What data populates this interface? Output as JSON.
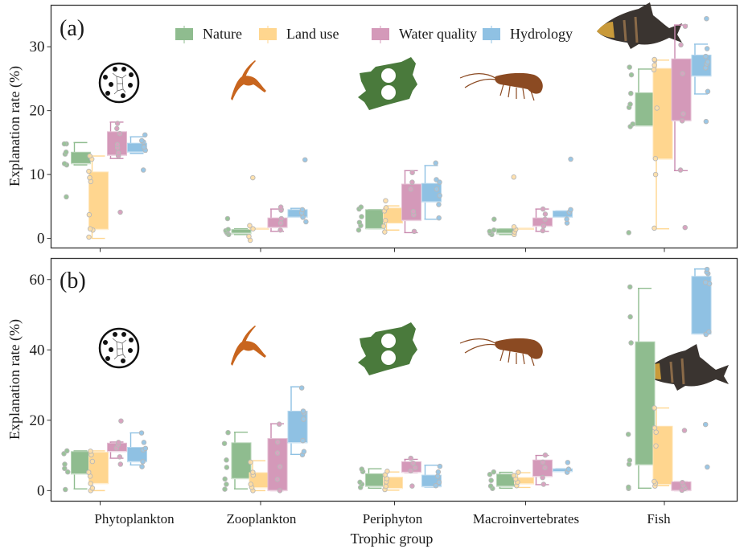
{
  "chart_data": {
    "type": "box",
    "xlabel": "Trophic group",
    "ylabel": "Explanation rate (%)",
    "categories": [
      "Phytoplankton",
      "Zooplankton",
      "Periphyton",
      "Macroinvertebrates",
      "Fish"
    ],
    "legend": {
      "position": "top-center",
      "entries": [
        {
          "name": "Nature",
          "color": "#8fbc8f"
        },
        {
          "name": "Land use",
          "color": "#ffd68f"
        },
        {
          "name": "Water quality",
          "color": "#d499b9"
        },
        {
          "name": "Hydrology",
          "color": "#8fc1e3"
        }
      ]
    },
    "panels": [
      {
        "label": "(a)",
        "ylim": [
          -1.5,
          36.5
        ],
        "yticks": [
          0,
          10,
          20,
          30
        ],
        "icons": [
          "phytoplankton-icon",
          "zooplankton-icon",
          "periphyton-icon",
          "macroinvertebrate-icon",
          "fish-icon"
        ],
        "series": [
          {
            "name": "Nature",
            "boxes": [
              {
                "min": 11.5,
                "q1": 11.7,
                "median": 11.7,
                "q3": 13.5,
                "max": 15.0,
                "points": [
                  6.5,
                  11.5,
                  11.7,
                  13.2,
                  13.5,
                  14.8,
                  14.8
                ]
              },
              {
                "min": 0.6,
                "q1": 0.7,
                "median": 0.8,
                "q3": 1.4,
                "max": 1.5,
                "points": [
                  0.6,
                  0.8,
                  1.0,
                  1.2,
                  1.4,
                  3.1
                ]
              },
              {
                "min": 1.5,
                "q1": 1.5,
                "median": 1.5,
                "q3": 4.5,
                "max": 4.5,
                "points": [
                  1.3,
                  2.0,
                  2.5,
                  3.4,
                  4.6,
                  4.9
                ]
              },
              {
                "min": 0.6,
                "q1": 0.7,
                "median": 0.8,
                "q3": 1.5,
                "max": 1.5,
                "points": [
                  0.6,
                  0.8,
                  1.1,
                  1.3,
                  3.0
                ]
              },
              {
                "min": 17.6,
                "q1": 17.6,
                "median": 17.6,
                "q3": 22.8,
                "max": 26.5,
                "points": [
                  0.9,
                  17.5,
                  17.9,
                  20.5,
                  21.0,
                  22.7,
                  25.6,
                  26.8
                ]
              }
            ]
          },
          {
            "name": "Land use",
            "boxes": [
              {
                "min": 0.0,
                "q1": 1.4,
                "median": 1.4,
                "q3": 10.4,
                "max": 12.9,
                "points": [
                  0.2,
                  1.3,
                  1.5,
                  3.7,
                  8.9,
                  9.5,
                  10.5,
                  12.4,
                  12.9
                ]
              },
              {
                "min": 1.6,
                "q1": 1.6,
                "median": 1.6,
                "q3": 1.6,
                "max": 1.6,
                "points": [
                  -0.3,
                  0.3,
                  1.5,
                  2.0,
                  9.5
                ]
              },
              {
                "min": 1.3,
                "q1": 2.4,
                "median": 4.8,
                "q3": 4.8,
                "max": 5.1,
                "points": [
                  1.0,
                  1.9,
                  2.8,
                  4.3,
                  4.8,
                  5.9
                ]
              },
              {
                "min": 1.6,
                "q1": 1.6,
                "median": 1.6,
                "q3": 1.6,
                "max": 1.6,
                "points": [
                  0.6,
                  1.0,
                  1.4,
                  1.8,
                  9.6
                ]
              },
              {
                "min": 1.5,
                "q1": 12.4,
                "median": 12.4,
                "q3": 26.6,
                "max": 27.9,
                "points": [
                  1.6,
                  10.0,
                  12.5,
                  20.4,
                  26.4,
                  27.1,
                  27.9,
                  28.0
                ]
              }
            ]
          },
          {
            "name": "Water quality",
            "boxes": [
              {
                "min": 12.5,
                "q1": 13.0,
                "median": 13.0,
                "q3": 16.7,
                "max": 18.2,
                "points": [
                  4.1,
                  12.9,
                  13.4,
                  14.2,
                  14.7,
                  16.4,
                  17.2,
                  18.0
                ]
              },
              {
                "min": 1.1,
                "q1": 1.7,
                "median": 1.7,
                "q3": 3.2,
                "max": 4.6,
                "points": [
                  1.3,
                  2.4,
                  3.1,
                  4.4,
                  4.9
                ]
              },
              {
                "min": 0.9,
                "q1": 2.8,
                "median": 2.8,
                "q3": 8.5,
                "max": 10.6,
                "points": [
                  1.1,
                  3.7,
                  4.2,
                  7.7,
                  8.8,
                  10.3
                ]
              },
              {
                "min": 1.1,
                "q1": 1.9,
                "median": 1.9,
                "q3": 3.2,
                "max": 4.6,
                "points": [
                  1.2,
                  1.9,
                  3.0,
                  3.8,
                  4.6
                ]
              },
              {
                "min": 10.6,
                "q1": 18.4,
                "median": 18.4,
                "q3": 28.1,
                "max": 33.4,
                "points": [
                  1.7,
                  10.7,
                  18.4,
                  19.5,
                  25.8,
                  30.3,
                  33.2
                ]
              }
            ]
          },
          {
            "name": "Hydrology",
            "boxes": [
              {
                "min": 13.3,
                "q1": 13.5,
                "median": 13.5,
                "q3": 14.9,
                "max": 15.9,
                "points": [
                  10.7,
                  13.8,
                  14.3,
                  15.1,
                  15.3,
                  16.2
                ]
              },
              {
                "min": 3.3,
                "q1": 3.3,
                "median": 3.3,
                "q3": 4.5,
                "max": 4.7,
                "points": [
                  2.6,
                  3.3,
                  4.0,
                  4.5,
                  12.3
                ]
              },
              {
                "min": 3.0,
                "q1": 5.7,
                "median": 5.7,
                "q3": 8.6,
                "max": 11.4,
                "points": [
                  3.2,
                  5.3,
                  6.7,
                  7.7,
                  8.8,
                  9.2,
                  11.8
                ]
              },
              {
                "min": 3.3,
                "q1": 3.3,
                "median": 3.3,
                "q3": 4.3,
                "max": 4.3,
                "points": [
                  2.4,
                  3.0,
                  4.1,
                  4.5,
                  12.4
                ]
              },
              {
                "min": 22.6,
                "q1": 25.4,
                "median": 25.4,
                "q3": 28.7,
                "max": 30.4,
                "points": [
                  18.3,
                  23.0,
                  26.7,
                  27.3,
                  27.6,
                  28.5,
                  29.7,
                  34.4
                ]
              }
            ]
          }
        ]
      },
      {
        "label": "(b)",
        "ylim": [
          -3,
          66
        ],
        "yticks": [
          0,
          20,
          40,
          60
        ],
        "icons": [
          "phytoplankton-icon",
          "zooplankton-icon",
          "periphyton-icon",
          "macroinvertebrate-icon",
          "fish-icon"
        ],
        "series": [
          {
            "name": "Nature",
            "boxes": [
              {
                "min": 0.5,
                "q1": 4.7,
                "median": 4.7,
                "q3": 11.1,
                "max": 11.3,
                "points": [
                  0.3,
                  5.3,
                  6.3,
                  7.5,
                  10.5,
                  11.3
                ]
              },
              {
                "min": 0.5,
                "q1": 3.4,
                "median": 3.4,
                "q3": 13.6,
                "max": 16.6,
                "points": [
                  0.4,
                  1.8,
                  3.3,
                  6.6,
                  8.7,
                  13.4,
                  16.5
                ]
              },
              {
                "min": 0.7,
                "q1": 1.2,
                "median": 1.2,
                "q3": 4.8,
                "max": 6.2,
                "points": [
                  0.9,
                  1.8,
                  2.4,
                  5.4,
                  6.1
                ]
              },
              {
                "min": 0.7,
                "q1": 1.2,
                "median": 1.2,
                "q3": 4.7,
                "max": 5.2,
                "points": [
                  0.6,
                  1.3,
                  2.9,
                  4.6,
                  5.3
                ]
              },
              {
                "min": 0.7,
                "q1": 7.3,
                "median": 7.3,
                "q3": 42.3,
                "max": 57.5,
                "points": [
                  0.6,
                  1.0,
                  7.5,
                  8.6,
                  16.0,
                  42.0,
                  49.4,
                  57.9
                ]
              }
            ]
          },
          {
            "name": "Land use",
            "boxes": [
              {
                "min": 0.0,
                "q1": 2.0,
                "median": 2.0,
                "q3": 10.9,
                "max": 11.3,
                "points": [
                  0.0,
                  0.7,
                  2.0,
                  4.1,
                  5.2,
                  8.3,
                  10.2,
                  11.2
                ]
              },
              {
                "min": 0.0,
                "q1": 0.8,
                "median": 0.8,
                "q3": 5.1,
                "max": 8.5,
                "points": [
                  0.0,
                  0.9,
                  1.8,
                  4.4,
                  5.2,
                  8.1
                ]
              },
              {
                "min": 0.1,
                "q1": 0.6,
                "median": 0.6,
                "q3": 3.8,
                "max": 5.3,
                "points": [
                  0.3,
                  1.2,
                  2.5,
                  3.4,
                  4.5,
                  5.5
                ]
              },
              {
                "min": 0.9,
                "q1": 1.9,
                "median": 1.9,
                "q3": 3.7,
                "max": 5.1,
                "points": [
                  1.4,
                  2.4,
                  3.3,
                  4.3,
                  5.2
                ]
              },
              {
                "min": 1.4,
                "q1": 1.7,
                "median": 1.7,
                "q3": 18.3,
                "max": 23.5,
                "points": [
                  1.3,
                  2.1,
                  2.6,
                  12.7,
                  16.6,
                  17.8,
                  23.5
                ]
              }
            ]
          },
          {
            "name": "Water quality",
            "boxes": [
              {
                "min": 9.2,
                "q1": 11.1,
                "median": 11.1,
                "q3": 13.5,
                "max": 13.8,
                "points": [
                  7.5,
                  9.6,
                  12.1,
                  13.0,
                  13.7,
                  19.8
                ]
              },
              {
                "min": 0.0,
                "q1": 0.0,
                "median": 0.0,
                "q3": 14.8,
                "max": 19.0,
                "points": [
                  0.0,
                  3.2,
                  6.8,
                  10.7,
                  13.8,
                  18.9
                ]
              },
              {
                "min": 5.1,
                "q1": 5.2,
                "median": 5.2,
                "q3": 8.2,
                "max": 8.9,
                "points": [
                  1.3,
                  5.6,
                  6.5,
                  7.8,
                  9.2
                ]
              },
              {
                "min": 1.7,
                "q1": 4.0,
                "median": 4.0,
                "q3": 8.7,
                "max": 10.0,
                "points": [
                  1.8,
                  3.7,
                  6.5,
                  8.1,
                  10.1
                ]
              },
              {
                "min": 0.0,
                "q1": 0.0,
                "median": 0.0,
                "q3": 2.5,
                "max": 2.5,
                "points": [
                  0.1,
                  0.6,
                  1.4,
                  2.3,
                  17.1
                ]
              }
            ]
          },
          {
            "name": "Hydrology",
            "boxes": [
              {
                "min": 7.3,
                "q1": 8.2,
                "median": 8.2,
                "q3": 12.3,
                "max": 16.4,
                "points": [
                  6.8,
                  8.2,
                  11.6,
                  12.0,
                  13.7,
                  16.4
                ]
              },
              {
                "min": 10.3,
                "q1": 13.6,
                "median": 13.6,
                "q3": 22.6,
                "max": 29.5,
                "points": [
                  10.2,
                  11.1,
                  14.2,
                  20.3,
                  22.1,
                  22.6,
                  29.2
                ]
              },
              {
                "min": 1.0,
                "q1": 1.1,
                "median": 1.1,
                "q3": 4.4,
                "max": 7.2,
                "points": [
                  1.4,
                  2.4,
                  4.1,
                  5.3,
                  6.9
                ]
              },
              {
                "min": 5.4,
                "q1": 5.4,
                "median": 5.4,
                "q3": 6.2,
                "max": 6.2,
                "points": [
                  5.2,
                  6.1,
                  8.0
                ]
              },
              {
                "min": 44.5,
                "q1": 44.5,
                "median": 44.5,
                "q3": 60.9,
                "max": 63.0,
                "points": [
                  6.7,
                  18.8,
                  44.4,
                  45.1,
                  58.8,
                  59.2,
                  61.7,
                  62.1,
                  62.9
                ]
              }
            ]
          }
        ]
      }
    ]
  }
}
